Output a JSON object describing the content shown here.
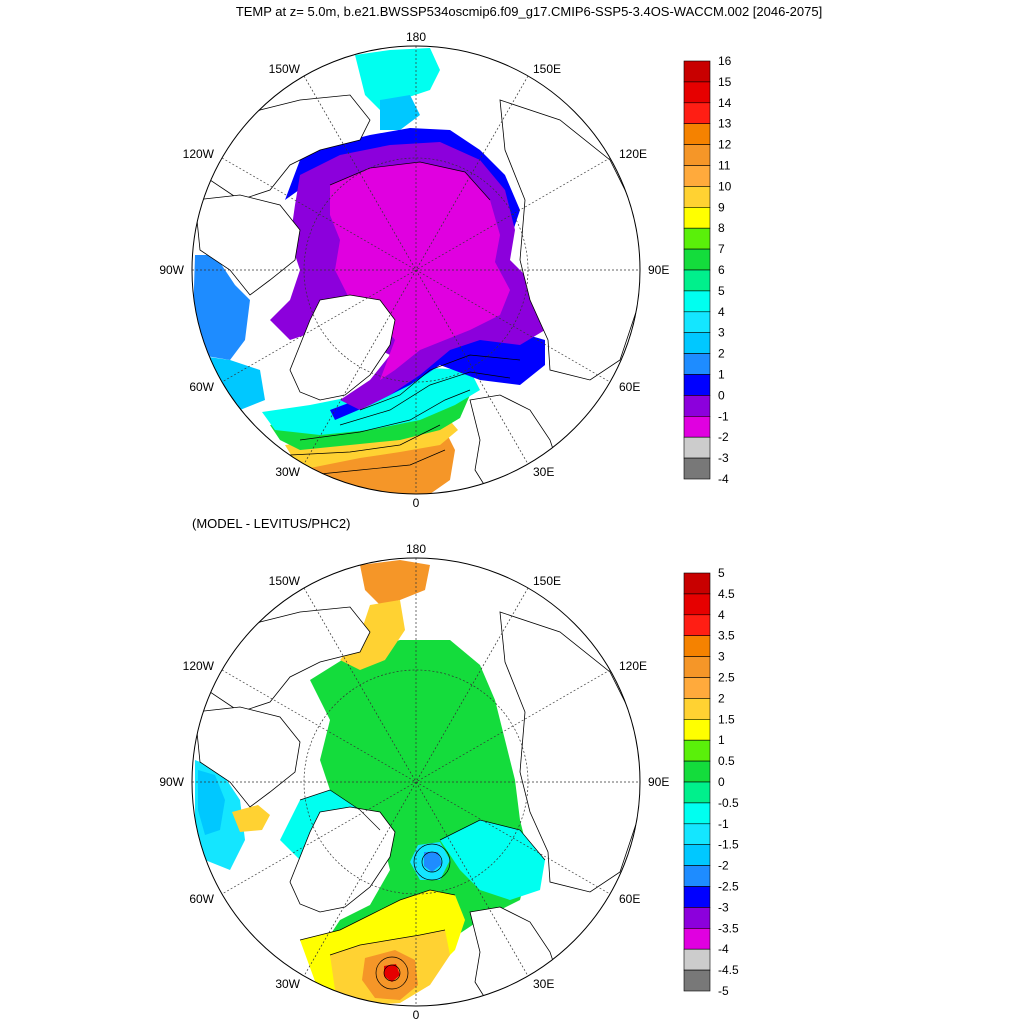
{
  "top_title": "TEMP at z=   5.0m, b.e21.BWSSP534oscmip6.f09_g17.CMIP6-SSP5-3.4OS-WACCM.002 [2046-2075]",
  "bottom_title": "(MODEL - LEVITUS/PHC2)",
  "lon_labels": {
    "n180": "180",
    "e150": "150E",
    "e120": "120E",
    "e90": "90E",
    "e60": "60E",
    "e30": "30E",
    "zero": "0",
    "w30": "30W",
    "w60": "60W",
    "w90": "90W",
    "w120": "120W",
    "w150": "150W"
  },
  "colors": {
    "land": "#ffffff",
    "grid": "#555555",
    "deep_magenta": "#e000e0",
    "purple": "#8c00dc",
    "blue": "#0014ff",
    "mid_blue": "#1e78ff",
    "light_blue": "#00b4ff",
    "cyan": "#00dcff",
    "aqua": "#00ffdc",
    "green": "#1ef05a",
    "yellow": "#ffea00",
    "light_orange": "#ffb432",
    "orange": "#f58c14"
  },
  "top_colorbar": {
    "labels": [
      "16",
      "15",
      "14",
      "13",
      "12",
      "11",
      "10",
      "9",
      "8",
      "7",
      "6",
      "5",
      "4",
      "3",
      "2",
      "1",
      "0",
      "-1",
      "-2",
      "-3",
      "-4"
    ],
    "colors": [
      "#c80000",
      "#e60000",
      "#ff1e14",
      "#f58200",
      "#f59628",
      "#ffaa3c",
      "#ffd232",
      "#ffff00",
      "#5af00a",
      "#14dc3c",
      "#00f08c",
      "#00fff0",
      "#14e6ff",
      "#00c8ff",
      "#1e8cff",
      "#0000ff",
      "#8c00dc",
      "#e000e0",
      "#cccccc",
      "#787878"
    ]
  },
  "bottom_colorbar": {
    "labels": [
      "5",
      "4.5",
      "4",
      "3.5",
      "3",
      "2.5",
      "2",
      "1.5",
      "1",
      "0.5",
      "0",
      "-0.5",
      "-1",
      "-1.5",
      "-2",
      "-2.5",
      "-3",
      "-3.5",
      "-4",
      "-4.5",
      "-5"
    ],
    "colors": [
      "#c80000",
      "#e60000",
      "#ff1e14",
      "#f58200",
      "#f59628",
      "#ffaa3c",
      "#ffd232",
      "#ffff00",
      "#5af00a",
      "#14dc3c",
      "#00f08c",
      "#00fff0",
      "#14e6ff",
      "#00c8ff",
      "#1e8cff",
      "#0000ff",
      "#8c00dc",
      "#e000e0",
      "#cccccc",
      "#787878"
    ]
  }
}
